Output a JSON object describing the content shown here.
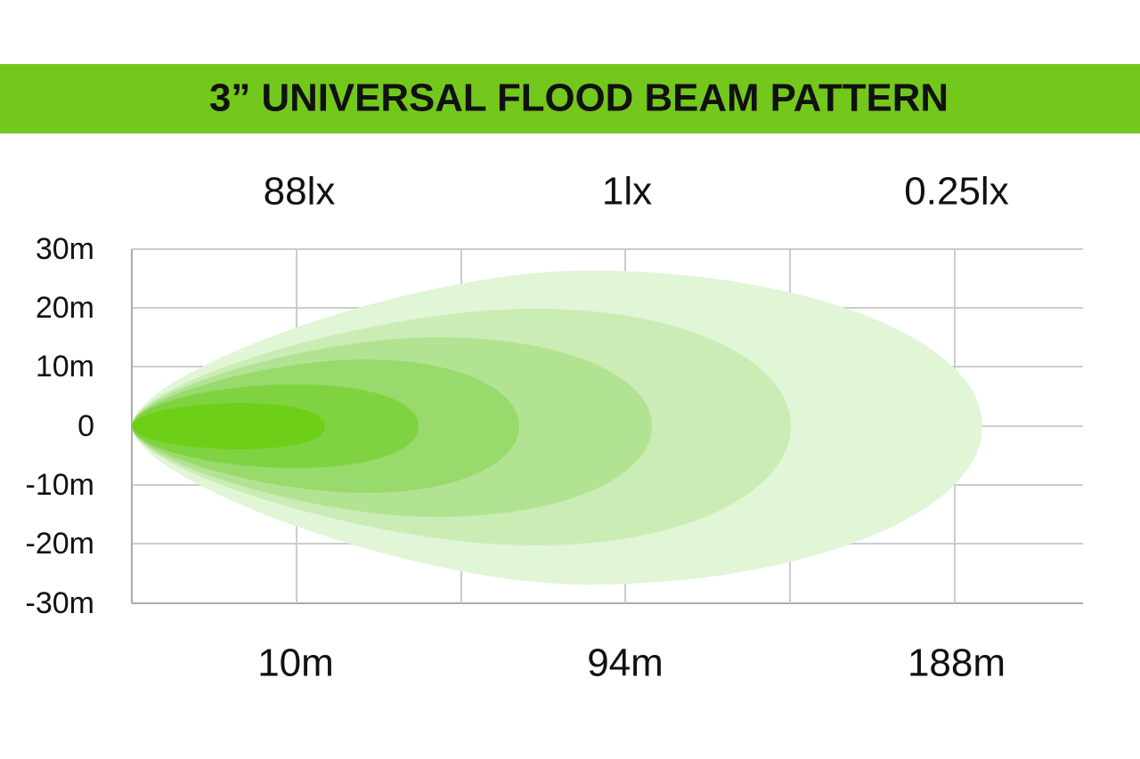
{
  "header": {
    "title": "3” UNIVERSAL FLOOD BEAM PATTERN"
  },
  "lux_labels": [
    "88lx",
    "1lx",
    "0.25lx"
  ],
  "y_labels": [
    "30m",
    "20m",
    "10m",
    "0",
    "-10m",
    "-20m",
    "-30m"
  ],
  "distance_labels": [
    "10m",
    "94m",
    "188m"
  ]
}
